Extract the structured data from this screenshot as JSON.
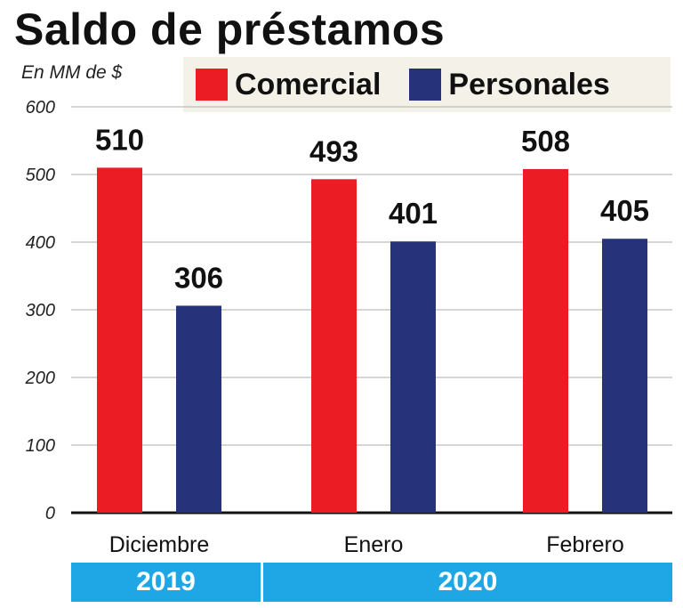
{
  "title": "Saldo de préstamos",
  "units_label": "En MM de $",
  "colors": {
    "comercial": "#ec1c24",
    "personales": "#26337a",
    "year_band": "#1ea7e4"
  },
  "years": [
    "2019",
    "2020"
  ],
  "chart_data": {
    "type": "bar",
    "title": "Saldo de préstamos",
    "ylabel": "En MM de $",
    "ylim": [
      0,
      600
    ],
    "yticks": [
      0,
      100,
      200,
      300,
      400,
      500,
      600
    ],
    "grid": true,
    "legend_position": "top-right",
    "categories": [
      "Diciembre",
      "Enero",
      "Febrero"
    ],
    "series": [
      {
        "name": "Comercial",
        "values": [
          510,
          493,
          508
        ],
        "color": "#ec1c24"
      },
      {
        "name": "Personales",
        "values": [
          306,
          401,
          405
        ],
        "color": "#26337a"
      }
    ]
  }
}
